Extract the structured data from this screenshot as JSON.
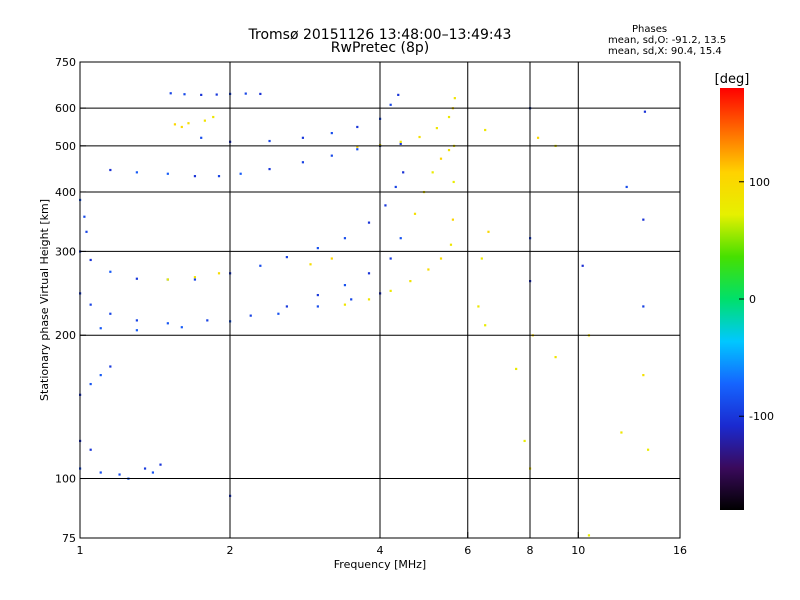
{
  "header": {
    "title_line1": "Tromsø 20151126 13:48:00–13:49:43",
    "title_line2": "RwPretec (8p)"
  },
  "stats": {
    "heading": "Phases",
    "line_o": "mean, sd,O: -91.2, 13.5",
    "line_x": "mean, sd,X:  90.4, 15.4"
  },
  "chart_data": {
    "type": "scatter",
    "title": "Tromsø 20151126 13:48:00–13:49:43",
    "subtitle": "RwPretec (8p)",
    "xlabel": "Frequency [MHz]",
    "ylabel": "Stationary phase Virtual Height [km]",
    "x_scale": "log",
    "y_scale": "log",
    "xlim": [
      1,
      16
    ],
    "ylim": [
      75,
      750
    ],
    "x_ticks": [
      1,
      2,
      4,
      6,
      8,
      10,
      16
    ],
    "y_ticks": [
      75,
      100,
      200,
      300,
      400,
      500,
      600,
      750
    ],
    "x_gridlines": [
      2,
      4,
      6,
      8,
      10
    ],
    "y_gridlines": [
      100,
      200,
      300,
      400,
      500,
      600
    ],
    "grid": true,
    "colorbar": {
      "label": "[deg]",
      "range": [
        -180,
        180
      ],
      "ticks": [
        100,
        0,
        -100
      ],
      "colors": [
        "#000000",
        "#3a0a5c",
        "#1a2ad0",
        "#1565ff",
        "#00c8ff",
        "#00e06a",
        "#46e000",
        "#e6f000",
        "#ffd200",
        "#ff6a00",
        "#ff0000"
      ]
    },
    "series": [
      {
        "phase": -91.2,
        "points": [
          [
            1.52,
            645
          ],
          [
            1.62,
            642
          ],
          [
            1.75,
            640
          ],
          [
            1.88,
            641
          ],
          [
            2.0,
            643
          ],
          [
            2.15,
            644
          ],
          [
            2.3,
            643
          ]
        ]
      },
      {
        "phase": 90.4,
        "points": [
          [
            1.55,
            555
          ],
          [
            1.65,
            558
          ],
          [
            1.78,
            565
          ],
          [
            1.85,
            575
          ],
          [
            1.6,
            548
          ]
        ]
      },
      {
        "phase": -91.2,
        "points": [
          [
            1.75,
            520
          ],
          [
            2.0,
            510
          ],
          [
            2.4,
            512
          ],
          [
            2.8,
            520
          ],
          [
            3.2,
            532
          ],
          [
            3.6,
            548
          ],
          [
            4.0,
            570
          ],
          [
            4.2,
            610
          ],
          [
            4.35,
            640
          ]
        ]
      },
      {
        "phase": -91.2,
        "points": [
          [
            1.15,
            445
          ],
          [
            1.3,
            440
          ],
          [
            1.5,
            437
          ],
          [
            1.7,
            432
          ],
          [
            1.9,
            432
          ],
          [
            2.1,
            437
          ],
          [
            2.4,
            447
          ],
          [
            2.8,
            462
          ],
          [
            3.2,
            477
          ],
          [
            3.6,
            492
          ],
          [
            4.0,
            500
          ],
          [
            4.4,
            505
          ]
        ]
      },
      {
        "phase": 90.4,
        "points": [
          [
            3.6,
            498
          ],
          [
            4.0,
            502
          ],
          [
            4.4,
            510
          ],
          [
            4.8,
            522
          ],
          [
            5.2,
            545
          ],
          [
            5.5,
            575
          ],
          [
            5.6,
            600
          ],
          [
            5.65,
            630
          ]
        ]
      },
      {
        "phase": -91.2,
        "points": [
          [
            1.0,
            300
          ],
          [
            1.05,
            288
          ],
          [
            1.15,
            272
          ],
          [
            1.3,
            263
          ],
          [
            1.5,
            262
          ],
          [
            1.7,
            262
          ],
          [
            2.0,
            270
          ],
          [
            2.3,
            280
          ],
          [
            2.6,
            292
          ],
          [
            3.0,
            305
          ],
          [
            3.4,
            320
          ],
          [
            3.8,
            345
          ],
          [
            4.1,
            375
          ],
          [
            4.3,
            410
          ],
          [
            4.45,
            440
          ]
        ]
      },
      {
        "phase": 90.4,
        "points": [
          [
            1.5,
            262
          ],
          [
            1.7,
            265
          ],
          [
            1.9,
            270
          ],
          [
            2.9,
            282
          ],
          [
            3.2,
            290
          ]
        ]
      },
      {
        "phase": -91.2,
        "points": [
          [
            1.0,
            245
          ],
          [
            1.05,
            232
          ],
          [
            1.15,
            222
          ],
          [
            1.3,
            215
          ],
          [
            1.5,
            212
          ],
          [
            1.8,
            215
          ],
          [
            2.2,
            220
          ],
          [
            2.6,
            230
          ],
          [
            3.0,
            243
          ],
          [
            3.4,
            255
          ],
          [
            3.8,
            270
          ],
          [
            4.2,
            290
          ],
          [
            4.4,
            320
          ]
        ]
      },
      {
        "phase": -91.2,
        "points": [
          [
            1.1,
            207
          ],
          [
            1.3,
            205
          ],
          [
            1.6,
            208
          ],
          [
            2.0,
            214
          ],
          [
            2.5,
            222
          ],
          [
            3.0,
            230
          ],
          [
            3.5,
            238
          ],
          [
            4.0,
            245
          ]
        ]
      },
      {
        "phase": 90.4,
        "points": [
          [
            3.4,
            232
          ],
          [
            3.8,
            238
          ],
          [
            4.2,
            248
          ],
          [
            4.6,
            260
          ],
          [
            5.0,
            275
          ],
          [
            5.3,
            290
          ],
          [
            5.55,
            310
          ],
          [
            5.6,
            350
          ],
          [
            5.62,
            420
          ],
          [
            5.63,
            500
          ]
        ]
      },
      {
        "phase": 90.4,
        "points": [
          [
            4.7,
            360
          ],
          [
            4.9,
            400
          ],
          [
            5.1,
            440
          ],
          [
            5.3,
            470
          ],
          [
            5.5,
            490
          ]
        ]
      },
      {
        "phase": -91.2,
        "points": [
          [
            1.0,
            385
          ],
          [
            1.02,
            355
          ],
          [
            1.03,
            330
          ]
        ]
      },
      {
        "phase": -91.2,
        "points": [
          [
            1.0,
            150
          ],
          [
            1.05,
            158
          ],
          [
            1.1,
            165
          ],
          [
            1.15,
            172
          ],
          [
            1.0,
            120
          ],
          [
            1.05,
            115
          ],
          [
            1.0,
            105
          ],
          [
            1.1,
            103
          ],
          [
            1.2,
            102
          ],
          [
            1.25,
            100
          ]
        ]
      },
      {
        "phase": 90.4,
        "points": [
          [
            6.5,
            540
          ],
          [
            6.6,
            330
          ],
          [
            6.4,
            290
          ],
          [
            6.5,
            210
          ],
          [
            7.5,
            170
          ],
          [
            7.8,
            120
          ],
          [
            8.0,
            105
          ],
          [
            8.1,
            200
          ],
          [
            8.3,
            520
          ],
          [
            9.0,
            500
          ],
          [
            10.5,
            200
          ],
          [
            10.5,
            76
          ],
          [
            12.2,
            125
          ],
          [
            13.5,
            165
          ],
          [
            13.8,
            115
          ],
          [
            9.0,
            180
          ],
          [
            6.3,
            230
          ]
        ]
      },
      {
        "phase": -91.2,
        "points": [
          [
            1.35,
            105
          ],
          [
            1.4,
            103
          ],
          [
            1.45,
            107
          ],
          [
            2.0,
            92
          ],
          [
            10.2,
            280
          ],
          [
            12.5,
            410
          ],
          [
            13.5,
            350
          ],
          [
            13.5,
            230
          ],
          [
            13.6,
            590
          ],
          [
            8.0,
            600
          ],
          [
            8.0,
            320
          ],
          [
            8.0,
            260
          ]
        ]
      }
    ]
  }
}
